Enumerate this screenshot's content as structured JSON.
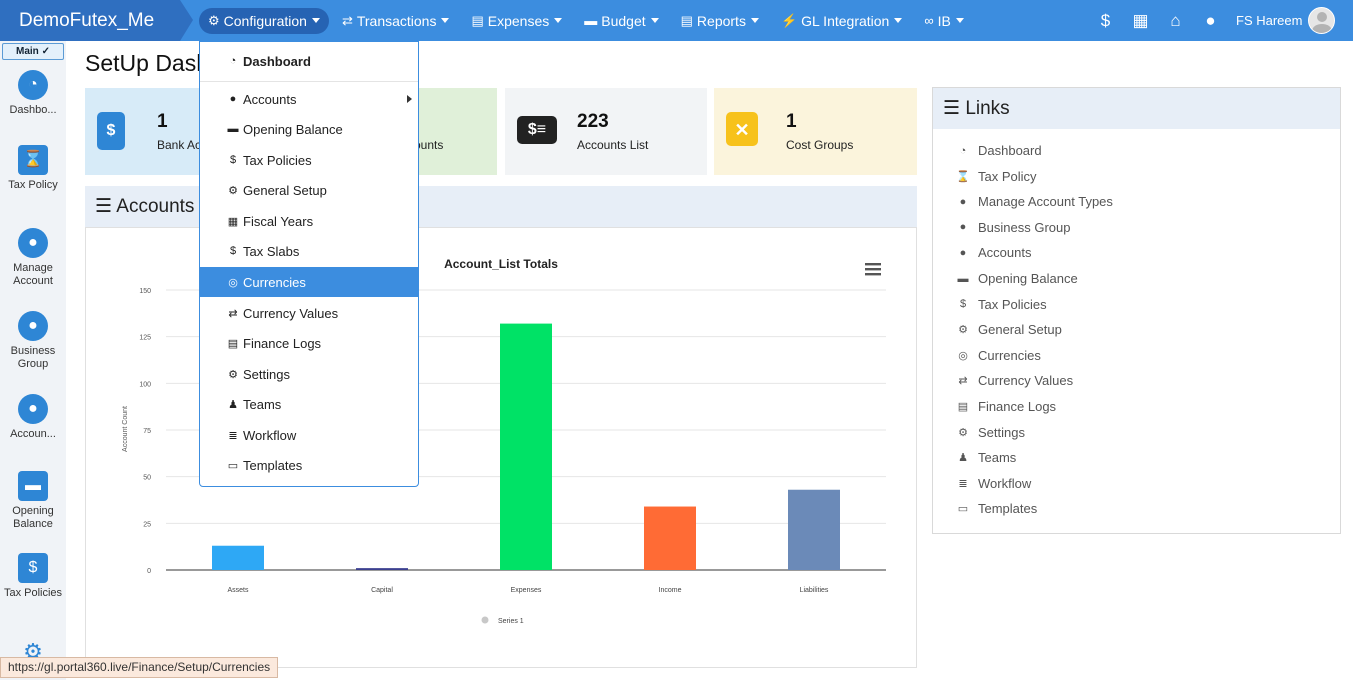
{
  "app": {
    "brand": "DemoFutex_Me"
  },
  "nav": [
    {
      "label": "Configuration",
      "icon": "gears-icon",
      "active": true
    },
    {
      "label": "Transactions",
      "icon": "exchange-icon"
    },
    {
      "label": "Expenses",
      "icon": "file-icon"
    },
    {
      "label": "Budget",
      "icon": "wallet-icon"
    },
    {
      "label": "Reports",
      "icon": "report-icon"
    },
    {
      "label": "GL Integration",
      "icon": "plug-icon"
    },
    {
      "label": "IB",
      "icon": "link-icon"
    }
  ],
  "top_right": {
    "user_name": "FS Hareem"
  },
  "sidebar": {
    "main_tab": "Main",
    "items": [
      {
        "label": "Dashbo...",
        "icon": "dashboard-icon"
      },
      {
        "label": "Tax Policy",
        "icon": "hourglass-icon"
      },
      {
        "label": "Manage Account",
        "icon": "user-circle-icon"
      },
      {
        "label": "Business Group",
        "icon": "user-circle-icon"
      },
      {
        "label": "Accoun...",
        "icon": "user-circle-icon"
      },
      {
        "label": "Opening Balance",
        "icon": "wallet-icon"
      },
      {
        "label": "Tax Policies",
        "icon": "file-dollar-icon"
      }
    ]
  },
  "page": {
    "title": "SetUp Dashboard"
  },
  "cards": [
    {
      "count": "1",
      "label": "Bank Accounts",
      "color": "#d7ebf8",
      "icon_color": "#2e86d5"
    },
    {
      "count": "",
      "label": "ounts",
      "color": "#e0f0d9"
    },
    {
      "count": "223",
      "label": "Accounts List",
      "color": "#f2f4f6",
      "icon_color": "#222222"
    },
    {
      "count": "1",
      "label": "Cost Groups",
      "color": "#fbf4dc",
      "icon_color": "#f7c21b"
    }
  ],
  "accounts_panel": {
    "title": "Accounts List"
  },
  "chart_data": {
    "type": "bar",
    "title": "Account_List Totals",
    "ylabel": "Account Count",
    "xlabel": "",
    "categories": [
      "Assets",
      "Capital",
      "Expenses",
      "Income",
      "Liabilities"
    ],
    "values": [
      13,
      1,
      132,
      34,
      43
    ],
    "colors": [
      "#2ea8f5",
      "#3b3f8f",
      "#00e266",
      "#ff6b35",
      "#6b8ab8"
    ],
    "ylim": [
      0,
      150
    ],
    "yticks": [
      0,
      25,
      50,
      75,
      100,
      125,
      150
    ],
    "grid": true,
    "legend": {
      "position": "bottom-center",
      "series_name": "Series 1"
    }
  },
  "links": {
    "title": "Links",
    "items": [
      {
        "label": "Dashboard",
        "icon": "dashboard-icon"
      },
      {
        "label": "Tax Policy",
        "icon": "hourglass-icon"
      },
      {
        "label": "Manage Account Types",
        "icon": "user-circle-icon"
      },
      {
        "label": "Business Group",
        "icon": "user-circle-icon"
      },
      {
        "label": "Accounts",
        "icon": "user-circle-icon"
      },
      {
        "label": "Opening Balance",
        "icon": "wallet-icon"
      },
      {
        "label": "Tax Policies",
        "icon": "file-dollar-icon"
      },
      {
        "label": "General Setup",
        "icon": "gears-icon"
      },
      {
        "label": "Currencies",
        "icon": "coins-icon"
      },
      {
        "label": "Currency Values",
        "icon": "exchange-icon"
      },
      {
        "label": "Finance Logs",
        "icon": "file-icon"
      },
      {
        "label": "Settings",
        "icon": "gears-icon"
      },
      {
        "label": "Teams",
        "icon": "user-icon"
      },
      {
        "label": "Workflow",
        "icon": "list-icon"
      },
      {
        "label": "Templates",
        "icon": "template-icon"
      }
    ]
  },
  "dropdown": {
    "items": [
      {
        "label": "Dashboard",
        "icon": "dashboard-icon",
        "bold": true
      },
      {
        "label": "Accounts",
        "icon": "user-circle-icon",
        "submenu": true
      },
      {
        "label": "Opening Balance",
        "icon": "wallet-icon"
      },
      {
        "label": "Tax Policies",
        "icon": "file-dollar-icon"
      },
      {
        "label": "General Setup",
        "icon": "gears-icon"
      },
      {
        "label": "Fiscal Years",
        "icon": "calendar-icon"
      },
      {
        "label": "Tax Slabs",
        "icon": "dollar-icon"
      },
      {
        "label": "Currencies",
        "icon": "coins-icon",
        "selected": true
      },
      {
        "label": "Currency Values",
        "icon": "exchange-icon"
      },
      {
        "label": "Finance Logs",
        "icon": "file-icon"
      },
      {
        "label": "Settings",
        "icon": "gears-icon"
      },
      {
        "label": "Teams",
        "icon": "user-icon"
      },
      {
        "label": "Workflow",
        "icon": "list-icon"
      },
      {
        "label": "Templates",
        "icon": "template-icon"
      }
    ]
  },
  "status_url": "https://gl.portal360.live/Finance/Setup/Currencies"
}
